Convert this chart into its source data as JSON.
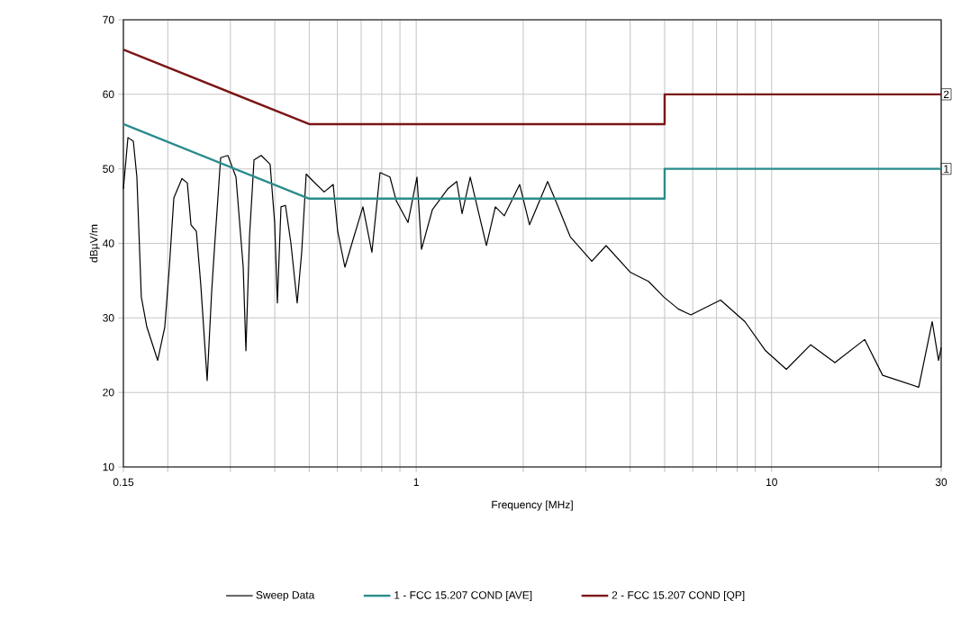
{
  "chart_data": {
    "type": "line",
    "xlabel": "Frequency [MHz]",
    "ylabel": "dBµV/m",
    "log": "x",
    "grid": true,
    "legend": "bottom",
    "marker": "none",
    "line_style": "solid",
    "xlim": [
      0.15,
      30
    ],
    "ylim": [
      10,
      70
    ],
    "xticks": [
      {
        "value": 0.15,
        "label": "0.15"
      },
      {
        "value": 0.2,
        "label": null
      },
      {
        "value": 0.3,
        "label": null
      },
      {
        "value": 0.4,
        "label": null
      },
      {
        "value": 0.5,
        "label": null
      },
      {
        "value": 0.6,
        "label": null
      },
      {
        "value": 0.7,
        "label": null
      },
      {
        "value": 0.8,
        "label": null
      },
      {
        "value": 0.9,
        "label": null
      },
      1,
      {
        "value": 2,
        "label": null
      },
      {
        "value": 3,
        "label": null
      },
      {
        "value": 4,
        "label": null
      },
      {
        "value": 5,
        "label": null
      },
      {
        "value": 6,
        "label": null
      },
      {
        "value": 7,
        "label": null
      },
      {
        "value": 8,
        "label": null
      },
      {
        "value": 9,
        "label": null
      },
      10,
      {
        "value": 20,
        "label": null
      },
      30
    ],
    "yticks": [
      10,
      20,
      30,
      40,
      50,
      60,
      70
    ],
    "annotations": [
      {
        "text": "1",
        "x": 30,
        "y": 50
      },
      {
        "text": "2",
        "x": 30,
        "y": 60
      }
    ],
    "series": [
      {
        "name": "Sweep Data",
        "color": "#000000",
        "x": [
          0.15,
          0.1545,
          0.16,
          0.1637,
          0.1685,
          0.1746,
          0.1873,
          0.1962,
          0.202,
          0.208,
          0.2192,
          0.227,
          0.2324,
          0.2407,
          0.2477,
          0.2581,
          0.2658,
          0.2705,
          0.2817,
          0.2952,
          0.3111,
          0.326,
          0.3318,
          0.3396,
          0.3497,
          0.3662,
          0.3882,
          0.3997,
          0.4068,
          0.4164,
          0.4287,
          0.4441,
          0.4625,
          0.4762,
          0.4903,
          0.5138,
          0.5509,
          0.5841,
          0.6013,
          0.6301,
          0.668,
          0.7081,
          0.7505,
          0.7911,
          0.8436,
          0.879,
          0.9482,
          1.005,
          1.035,
          1.11,
          1.226,
          1.3,
          1.346,
          1.419,
          1.576,
          1.67,
          1.77,
          1.955,
          2.084,
          2.343,
          2.469,
          2.712,
          3.119,
          3.422,
          4.009,
          4.504,
          4.973,
          5.461,
          5.926,
          7.183,
          8.412,
          9.616,
          11.0,
          12.88,
          15.07,
          18.27,
          20.53,
          25.94,
          28.31,
          29.49,
          30
        ],
        "values": [
          47.3,
          54.2,
          53.7,
          48.9,
          32.8,
          28.8,
          24.3,
          28.8,
          36.8,
          46.1,
          48.7,
          48.1,
          42.5,
          41.6,
          34.4,
          21.6,
          33.6,
          39.2,
          51.5,
          51.8,
          48.9,
          36.8,
          25.6,
          40.9,
          51.2,
          51.8,
          50.6,
          42.8,
          32.0,
          44.9,
          45.1,
          40.0,
          32.0,
          38.8,
          49.3,
          48.3,
          46.9,
          47.9,
          41.6,
          36.8,
          40.9,
          44.9,
          38.8,
          49.5,
          48.9,
          45.7,
          42.8,
          48.9,
          39.2,
          44.5,
          47.3,
          48.3,
          44.0,
          48.9,
          39.7,
          44.9,
          43.7,
          47.9,
          42.5,
          48.3,
          45.7,
          40.9,
          37.6,
          39.7,
          36.1,
          34.9,
          32.8,
          31.2,
          30.4,
          32.4,
          29.5,
          25.6,
          23.1,
          26.4,
          24.0,
          27.1,
          22.3,
          20.7,
          29.5,
          24.3,
          26.0
        ]
      },
      {
        "name": "1 - FCC 15.207 COND [AVE]",
        "color": "#2a8c8c",
        "x": [
          0.15,
          0.5,
          5,
          5,
          30
        ],
        "values": [
          56,
          46,
          46,
          50,
          50
        ]
      },
      {
        "name": "2 - FCC 15.207 COND [QP]",
        "color": "#7b1616",
        "x": [
          0.15,
          0.5,
          5,
          5,
          30
        ],
        "values": [
          66,
          56,
          56,
          60,
          60
        ]
      }
    ]
  }
}
